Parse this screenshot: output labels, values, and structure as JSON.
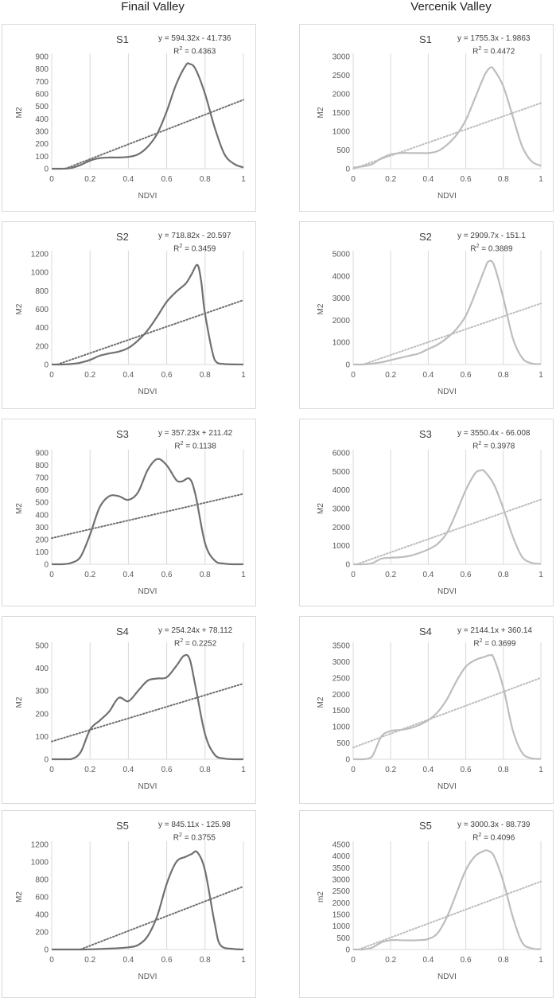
{
  "headers": {
    "left": "Finail Valley",
    "right": "Vercenik Valley"
  },
  "colors": {
    "finail": "#707070",
    "vercenik": "#bdbdbd",
    "grid": "#d9d9d9",
    "text": "#595959"
  },
  "chart_data": [
    {
      "id": "f1",
      "type": "line",
      "title": "S1",
      "equation": "y = 594.32x - 41.736",
      "r2_label": "R",
      "r2_value": " = 0.4363",
      "xlabel": "NDVI",
      "ylabel": "M2",
      "xlim": [
        0,
        1
      ],
      "ylim": [
        0,
        900
      ],
      "xticks": [
        0,
        0.2,
        0.4,
        0.6,
        0.8,
        1
      ],
      "yticks": [
        0,
        100,
        200,
        300,
        400,
        500,
        600,
        700,
        800,
        900
      ],
      "series": [
        {
          "x": [
            0,
            0.05,
            0.1,
            0.15,
            0.2,
            0.25,
            0.3,
            0.35,
            0.4,
            0.45,
            0.5,
            0.55,
            0.6,
            0.65,
            0.7,
            0.72,
            0.75,
            0.8,
            0.85,
            0.9,
            0.95,
            1.0
          ],
          "y": [
            0,
            0,
            5,
            30,
            65,
            85,
            90,
            90,
            95,
            115,
            175,
            280,
            460,
            680,
            830,
            840,
            800,
            600,
            330,
            120,
            40,
            10
          ]
        }
      ],
      "trend": {
        "slope": 594.32,
        "intercept": -41.736
      }
    },
    {
      "id": "v1",
      "type": "line",
      "title": "S1",
      "equation": "y = 1755.3x - 1.9863",
      "r2_label": "R",
      "r2_value": " = 0.4472",
      "xlabel": "NDVI",
      "ylabel": "M2",
      "xlim": [
        0,
        1
      ],
      "ylim": [
        0,
        3000
      ],
      "xticks": [
        0,
        0.2,
        0.4,
        0.6,
        0.8,
        1
      ],
      "yticks": [
        0,
        500,
        1000,
        1500,
        2000,
        2500,
        3000
      ],
      "series": [
        {
          "x": [
            0,
            0.05,
            0.1,
            0.15,
            0.2,
            0.25,
            0.3,
            0.35,
            0.4,
            0.45,
            0.5,
            0.55,
            0.6,
            0.65,
            0.7,
            0.73,
            0.75,
            0.8,
            0.85,
            0.9,
            0.95,
            1.0
          ],
          "y": [
            30,
            60,
            120,
            280,
            380,
            420,
            420,
            420,
            420,
            470,
            640,
            900,
            1300,
            1900,
            2500,
            2700,
            2650,
            2200,
            1400,
            600,
            200,
            80
          ]
        }
      ],
      "trend": {
        "slope": 1755.3,
        "intercept": -1.9863
      }
    },
    {
      "id": "f2",
      "type": "line",
      "title": "S2",
      "equation": "y = 718.82x - 20.597",
      "r2_label": "R",
      "r2_value": " = 0.3459",
      "xlabel": "NDVI",
      "ylabel": "M2",
      "xlim": [
        0,
        1
      ],
      "ylim": [
        0,
        1200
      ],
      "xticks": [
        0,
        0.2,
        0.4,
        0.6,
        0.8,
        1
      ],
      "yticks": [
        0,
        200,
        400,
        600,
        800,
        1000,
        1200
      ],
      "series": [
        {
          "x": [
            0,
            0.05,
            0.1,
            0.15,
            0.2,
            0.25,
            0.3,
            0.35,
            0.4,
            0.45,
            0.5,
            0.55,
            0.6,
            0.65,
            0.7,
            0.73,
            0.76,
            0.78,
            0.8,
            0.85,
            0.9,
            1.0
          ],
          "y": [
            0,
            0,
            5,
            20,
            50,
            95,
            120,
            140,
            180,
            260,
            370,
            520,
            680,
            790,
            880,
            980,
            1080,
            900,
            550,
            50,
            5,
            0
          ]
        }
      ],
      "trend": {
        "slope": 718.82,
        "intercept": -20.597
      }
    },
    {
      "id": "v2",
      "type": "line",
      "title": "S2",
      "equation": "y = 2909.7x - 151.1",
      "r2_label": "R",
      "r2_value": " = 0.3889",
      "xlabel": "NDVI",
      "ylabel": "M2",
      "xlim": [
        0,
        1
      ],
      "ylim": [
        0,
        5000
      ],
      "xticks": [
        0,
        0.2,
        0.4,
        0.6,
        0.8,
        1
      ],
      "yticks": [
        0,
        1000,
        2000,
        3000,
        4000,
        5000
      ],
      "series": [
        {
          "x": [
            0,
            0.05,
            0.1,
            0.15,
            0.2,
            0.25,
            0.3,
            0.35,
            0.4,
            0.45,
            0.5,
            0.55,
            0.6,
            0.65,
            0.7,
            0.72,
            0.75,
            0.8,
            0.85,
            0.9,
            0.95,
            1.0
          ],
          "y": [
            0,
            0,
            40,
            100,
            200,
            300,
            400,
            500,
            700,
            900,
            1200,
            1600,
            2200,
            3200,
            4300,
            4650,
            4500,
            3000,
            1200,
            300,
            50,
            20
          ]
        }
      ],
      "trend": {
        "slope": 2909.7,
        "intercept": -151.1
      }
    },
    {
      "id": "f3",
      "type": "line",
      "title": "S3",
      "equation": "y = 357.23x + 211.42",
      "r2_label": "R",
      "r2_value": " = 0.1138",
      "xlabel": "NDVI",
      "ylabel": "M2",
      "xlim": [
        0,
        1
      ],
      "ylim": [
        0,
        900
      ],
      "xticks": [
        0,
        0.2,
        0.4,
        0.6,
        0.8,
        1
      ],
      "yticks": [
        0,
        100,
        200,
        300,
        400,
        500,
        600,
        700,
        800,
        900
      ],
      "series": [
        {
          "x": [
            0,
            0.05,
            0.1,
            0.15,
            0.2,
            0.25,
            0.3,
            0.35,
            0.4,
            0.45,
            0.5,
            0.55,
            0.6,
            0.65,
            0.68,
            0.72,
            0.75,
            0.8,
            0.85,
            0.9,
            0.95,
            1.0
          ],
          "y": [
            0,
            0,
            10,
            60,
            240,
            460,
            550,
            550,
            520,
            580,
            760,
            850,
            800,
            680,
            670,
            690,
            560,
            170,
            30,
            5,
            0,
            0
          ]
        }
      ],
      "trend": {
        "slope": 357.23,
        "intercept": 211.42
      }
    },
    {
      "id": "v3",
      "type": "line",
      "title": "S3",
      "equation": "y = 3550.4x - 66.008",
      "r2_label": "R",
      "r2_value": " = 0.3978",
      "xlabel": "NDVI",
      "ylabel": "M2",
      "xlim": [
        0,
        1
      ],
      "ylim": [
        0,
        6000
      ],
      "xticks": [
        0,
        0.2,
        0.4,
        0.6,
        0.8,
        1
      ],
      "yticks": [
        0,
        1000,
        2000,
        3000,
        4000,
        5000,
        6000
      ],
      "series": [
        {
          "x": [
            0,
            0.05,
            0.1,
            0.15,
            0.2,
            0.25,
            0.3,
            0.35,
            0.4,
            0.45,
            0.5,
            0.55,
            0.6,
            0.65,
            0.68,
            0.7,
            0.75,
            0.8,
            0.85,
            0.9,
            0.95,
            1.0
          ],
          "y": [
            0,
            0,
            50,
            300,
            350,
            380,
            450,
            600,
            800,
            1100,
            1700,
            2800,
            4000,
            4900,
            5050,
            5000,
            4300,
            3000,
            1500,
            400,
            80,
            20
          ]
        }
      ],
      "trend": {
        "slope": 3550.4,
        "intercept": -66.008
      }
    },
    {
      "id": "f4",
      "type": "line",
      "title": "S4",
      "equation": "y = 254.24x + 78.112",
      "r2_label": "R",
      "r2_value": " = 0.2252",
      "xlabel": "NDVI",
      "ylabel": "M2",
      "xlim": [
        0,
        1
      ],
      "ylim": [
        0,
        500
      ],
      "xticks": [
        0,
        0.2,
        0.4,
        0.6,
        0.8,
        1
      ],
      "yticks": [
        0,
        100,
        200,
        300,
        400,
        500
      ],
      "series": [
        {
          "x": [
            0,
            0.05,
            0.1,
            0.15,
            0.2,
            0.25,
            0.3,
            0.35,
            0.4,
            0.45,
            0.5,
            0.55,
            0.6,
            0.65,
            0.69,
            0.72,
            0.75,
            0.8,
            0.85,
            0.9,
            0.95,
            1.0
          ],
          "y": [
            0,
            0,
            0,
            30,
            130,
            170,
            210,
            270,
            255,
            300,
            345,
            355,
            360,
            410,
            455,
            440,
            320,
            110,
            20,
            3,
            0,
            0
          ]
        }
      ],
      "trend": {
        "slope": 254.24,
        "intercept": 78.112
      }
    },
    {
      "id": "v4",
      "type": "line",
      "title": "S4",
      "equation": "y = 2144.1x + 360.14",
      "r2_label": "R",
      "r2_value": " = 0.3699",
      "xlabel": "NDVI",
      "ylabel": "M2",
      "xlim": [
        0,
        1
      ],
      "ylim": [
        0,
        3500
      ],
      "xticks": [
        0,
        0.2,
        0.4,
        0.6,
        0.8,
        1
      ],
      "yticks": [
        0,
        500,
        1000,
        1500,
        2000,
        2500,
        3000,
        3500
      ],
      "series": [
        {
          "x": [
            0,
            0.05,
            0.1,
            0.15,
            0.2,
            0.25,
            0.3,
            0.35,
            0.4,
            0.45,
            0.5,
            0.55,
            0.6,
            0.65,
            0.7,
            0.73,
            0.75,
            0.8,
            0.85,
            0.9,
            0.95,
            1.0
          ],
          "y": [
            0,
            0,
            80,
            700,
            870,
            900,
            950,
            1050,
            1200,
            1450,
            1850,
            2400,
            2850,
            3050,
            3150,
            3200,
            3100,
            2200,
            900,
            200,
            30,
            10
          ]
        }
      ],
      "trend": {
        "slope": 2144.1,
        "intercept": 360.14
      }
    },
    {
      "id": "f5",
      "type": "line",
      "title": "S5",
      "equation": "y = 845.11x - 125.98",
      "r2_label": "R",
      "r2_value": " = 0.3755",
      "xlabel": "NDVI",
      "ylabel": "M2",
      "xlim": [
        0,
        1
      ],
      "ylim": [
        0,
        1200
      ],
      "xticks": [
        0,
        0.2,
        0.4,
        0.6,
        0.8,
        1
      ],
      "yticks": [
        0,
        200,
        400,
        600,
        800,
        1000,
        1200
      ],
      "series": [
        {
          "x": [
            0,
            0.05,
            0.1,
            0.15,
            0.2,
            0.25,
            0.3,
            0.35,
            0.4,
            0.45,
            0.5,
            0.55,
            0.6,
            0.65,
            0.7,
            0.73,
            0.76,
            0.8,
            0.85,
            0.88,
            0.95,
            1.0
          ],
          "y": [
            0,
            0,
            0,
            0,
            2,
            5,
            10,
            15,
            25,
            50,
            150,
            380,
            750,
            1000,
            1060,
            1090,
            1110,
            900,
            300,
            50,
            5,
            0
          ]
        }
      ],
      "trend": {
        "slope": 845.11,
        "intercept": -125.98
      }
    },
    {
      "id": "v5",
      "type": "line",
      "title": "S5",
      "equation": "y = 3000.3x - 88.739",
      "r2_label": "R",
      "r2_value": " = 0.4096",
      "xlabel": "NDVI",
      "ylabel": "m2",
      "xlim": [
        0,
        1
      ],
      "ylim": [
        0,
        4500
      ],
      "xticks": [
        0,
        0.2,
        0.4,
        0.6,
        0.8,
        1
      ],
      "yticks": [
        0,
        500,
        1000,
        1500,
        2000,
        2500,
        3000,
        3500,
        4000,
        4500
      ],
      "series": [
        {
          "x": [
            0,
            0.05,
            0.1,
            0.15,
            0.2,
            0.25,
            0.3,
            0.35,
            0.4,
            0.45,
            0.5,
            0.55,
            0.6,
            0.65,
            0.7,
            0.72,
            0.75,
            0.8,
            0.85,
            0.9,
            0.95,
            1.0
          ],
          "y": [
            0,
            0,
            80,
            300,
            400,
            400,
            390,
            400,
            450,
            700,
            1400,
            2400,
            3400,
            4000,
            4230,
            4220,
            4000,
            2900,
            1400,
            300,
            50,
            10
          ]
        }
      ],
      "trend": {
        "slope": 3000.3,
        "intercept": -88.739
      }
    }
  ]
}
